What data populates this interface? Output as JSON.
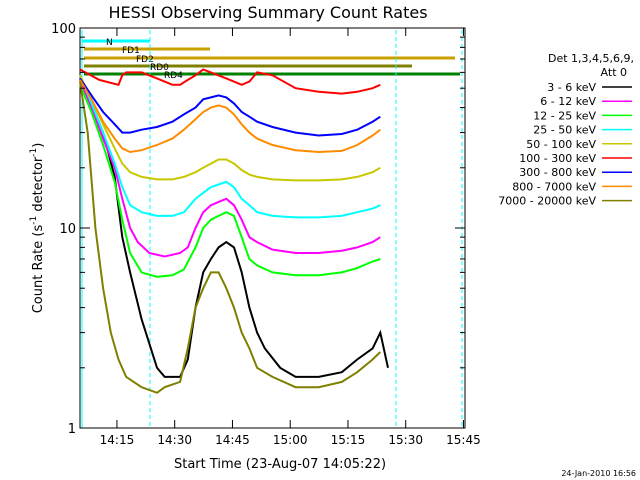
{
  "chart_data": {
    "type": "line",
    "title": "HESSI Observing Summary Count Rates",
    "xlabel": "Start Time (23-Aug-07 14:05:22)",
    "ylabel_main": "Count Rate (s",
    "ylabel_sup1": "-1",
    "ylabel_mid": " detector",
    "ylabel_sup2": "-1",
    "ylabel_end": ")",
    "yscale": "log",
    "ylim": [
      1,
      100
    ],
    "xlim_minutes": [
      0,
      100
    ],
    "xticks": [
      {
        "t": 9.6,
        "label": "14:15"
      },
      {
        "t": 24.6,
        "label": "14:30"
      },
      {
        "t": 39.6,
        "label": "14:45"
      },
      {
        "t": 54.6,
        "label": "15:00"
      },
      {
        "t": 69.6,
        "label": "15:15"
      },
      {
        "t": 84.6,
        "label": "15:30"
      },
      {
        "t": 99.6,
        "label": "15:45"
      }
    ],
    "yticks": [
      {
        "v": 1,
        "label": "1"
      },
      {
        "v": 10,
        "label": "10"
      },
      {
        "v": 100,
        "label": "100"
      }
    ],
    "legend_header": [
      "Det 1,3,4,5,6,9,",
      "Att 0"
    ],
    "series": [
      {
        "name": "3 - 6 keV",
        "color": "#000000",
        "points": [
          [
            0,
            55
          ],
          [
            3,
            42
          ],
          [
            6,
            30
          ],
          [
            9,
            18
          ],
          [
            11,
            9
          ],
          [
            13,
            6
          ],
          [
            16,
            3.5
          ],
          [
            20,
            2
          ],
          [
            22,
            1.8
          ],
          [
            26,
            1.8
          ],
          [
            28,
            2.2
          ],
          [
            30,
            4
          ],
          [
            32,
            6
          ],
          [
            34,
            7
          ],
          [
            36,
            8
          ],
          [
            38,
            8.5
          ],
          [
            40,
            8
          ],
          [
            42,
            6
          ],
          [
            44,
            4
          ],
          [
            46,
            3
          ],
          [
            48,
            2.5
          ],
          [
            52,
            2
          ],
          [
            56,
            1.8
          ],
          [
            62,
            1.8
          ],
          [
            68,
            1.9
          ],
          [
            72,
            2.2
          ],
          [
            76,
            2.5
          ],
          [
            78,
            3
          ],
          [
            80,
            2
          ]
        ]
      },
      {
        "name": "6 - 12 keV",
        "color": "#ff00ff",
        "points": [
          [
            0,
            55
          ],
          [
            3,
            40
          ],
          [
            6,
            28
          ],
          [
            9,
            20
          ],
          [
            11,
            14
          ],
          [
            13,
            10
          ],
          [
            15,
            8.5
          ],
          [
            18,
            7.5
          ],
          [
            22,
            7.2
          ],
          [
            26,
            7.5
          ],
          [
            28,
            8
          ],
          [
            30,
            10
          ],
          [
            32,
            12
          ],
          [
            34,
            13
          ],
          [
            36,
            13.5
          ],
          [
            38,
            14
          ],
          [
            40,
            13
          ],
          [
            42,
            11
          ],
          [
            44,
            9
          ],
          [
            46,
            8.5
          ],
          [
            50,
            7.8
          ],
          [
            56,
            7.5
          ],
          [
            62,
            7.5
          ],
          [
            68,
            7.7
          ],
          [
            72,
            8
          ],
          [
            76,
            8.5
          ],
          [
            78,
            9
          ]
        ]
      },
      {
        "name": "12 - 25 keV",
        "color": "#00ff00",
        "points": [
          [
            0,
            52
          ],
          [
            3,
            38
          ],
          [
            6,
            26
          ],
          [
            9,
            17
          ],
          [
            11,
            11
          ],
          [
            13,
            7.5
          ],
          [
            16,
            6
          ],
          [
            20,
            5.7
          ],
          [
            24,
            5.8
          ],
          [
            27,
            6.2
          ],
          [
            30,
            8
          ],
          [
            32,
            10
          ],
          [
            34,
            11
          ],
          [
            36,
            11.5
          ],
          [
            38,
            12
          ],
          [
            40,
            11.5
          ],
          [
            42,
            9
          ],
          [
            44,
            7
          ],
          [
            46,
            6.5
          ],
          [
            50,
            6
          ],
          [
            56,
            5.8
          ],
          [
            62,
            5.8
          ],
          [
            68,
            6
          ],
          [
            72,
            6.3
          ],
          [
            76,
            6.8
          ],
          [
            78,
            7
          ]
        ]
      },
      {
        "name": "25 - 50 keV",
        "color": "#00ffff",
        "points": [
          [
            0,
            58
          ],
          [
            3,
            42
          ],
          [
            6,
            30
          ],
          [
            9,
            21
          ],
          [
            11,
            16
          ],
          [
            13,
            13
          ],
          [
            16,
            12
          ],
          [
            20,
            11.5
          ],
          [
            24,
            11.5
          ],
          [
            27,
            12
          ],
          [
            30,
            14
          ],
          [
            32,
            15
          ],
          [
            34,
            16
          ],
          [
            36,
            16.5
          ],
          [
            38,
            17
          ],
          [
            40,
            16
          ],
          [
            42,
            14
          ],
          [
            44,
            13
          ],
          [
            46,
            12
          ],
          [
            50,
            11.5
          ],
          [
            56,
            11.3
          ],
          [
            62,
            11.3
          ],
          [
            68,
            11.5
          ],
          [
            72,
            12
          ],
          [
            76,
            12.5
          ],
          [
            78,
            13
          ]
        ]
      },
      {
        "name": "50 - 100 keV",
        "color": "#c8c800",
        "points": [
          [
            0,
            58
          ],
          [
            3,
            44
          ],
          [
            6,
            33
          ],
          [
            9,
            25
          ],
          [
            11,
            21
          ],
          [
            13,
            19
          ],
          [
            16,
            18
          ],
          [
            20,
            17.5
          ],
          [
            24,
            17.5
          ],
          [
            27,
            18
          ],
          [
            30,
            19
          ],
          [
            32,
            20
          ],
          [
            34,
            21
          ],
          [
            36,
            22
          ],
          [
            38,
            22
          ],
          [
            40,
            21
          ],
          [
            42,
            19.5
          ],
          [
            44,
            18.5
          ],
          [
            46,
            18
          ],
          [
            50,
            17.5
          ],
          [
            56,
            17.3
          ],
          [
            62,
            17.3
          ],
          [
            68,
            17.5
          ],
          [
            72,
            18
          ],
          [
            76,
            19
          ],
          [
            78,
            20
          ]
        ]
      },
      {
        "name": "100 - 300 keV",
        "color": "#ff0000",
        "points": [
          [
            0,
            62
          ],
          [
            5,
            55
          ],
          [
            10,
            52
          ],
          [
            11,
            58
          ],
          [
            12,
            60
          ],
          [
            16,
            60
          ],
          [
            20,
            56
          ],
          [
            24,
            52
          ],
          [
            26,
            52
          ],
          [
            28,
            55
          ],
          [
            30,
            58
          ],
          [
            32,
            62
          ],
          [
            34,
            60
          ],
          [
            38,
            56
          ],
          [
            42,
            52
          ],
          [
            44,
            54
          ],
          [
            46,
            60
          ],
          [
            50,
            58
          ],
          [
            56,
            50
          ],
          [
            62,
            48
          ],
          [
            68,
            47
          ],
          [
            72,
            48
          ],
          [
            76,
            50
          ],
          [
            78,
            52
          ]
        ]
      },
      {
        "name": "300 - 800 keV",
        "color": "#0000ff",
        "points": [
          [
            0,
            56
          ],
          [
            3,
            46
          ],
          [
            6,
            38
          ],
          [
            9,
            33
          ],
          [
            11,
            30
          ],
          [
            13,
            30
          ],
          [
            16,
            31
          ],
          [
            20,
            32
          ],
          [
            24,
            34
          ],
          [
            27,
            37
          ],
          [
            30,
            40
          ],
          [
            32,
            44
          ],
          [
            34,
            45
          ],
          [
            36,
            46
          ],
          [
            38,
            45
          ],
          [
            40,
            42
          ],
          [
            42,
            38
          ],
          [
            44,
            36
          ],
          [
            46,
            34
          ],
          [
            50,
            32
          ],
          [
            56,
            30
          ],
          [
            62,
            29
          ],
          [
            68,
            29.5
          ],
          [
            72,
            31
          ],
          [
            76,
            34
          ],
          [
            78,
            36
          ]
        ]
      },
      {
        "name": "800 - 7000 keV",
        "color": "#ff8c00",
        "points": [
          [
            0,
            55
          ],
          [
            3,
            44
          ],
          [
            6,
            34
          ],
          [
            9,
            28
          ],
          [
            11,
            25
          ],
          [
            13,
            24
          ],
          [
            16,
            24.5
          ],
          [
            20,
            26
          ],
          [
            24,
            28
          ],
          [
            27,
            31
          ],
          [
            30,
            35
          ],
          [
            32,
            38
          ],
          [
            34,
            40
          ],
          [
            36,
            41
          ],
          [
            38,
            40
          ],
          [
            40,
            37
          ],
          [
            42,
            33
          ],
          [
            44,
            30
          ],
          [
            46,
            28
          ],
          [
            50,
            26
          ],
          [
            56,
            24.5
          ],
          [
            62,
            24
          ],
          [
            68,
            24.3
          ],
          [
            72,
            26
          ],
          [
            76,
            29
          ],
          [
            78,
            31
          ]
        ]
      },
      {
        "name": "7000 - 20000 keV",
        "color": "#808000",
        "points": [
          [
            0,
            54
          ],
          [
            2,
            30
          ],
          [
            4,
            10
          ],
          [
            6,
            5
          ],
          [
            8,
            3
          ],
          [
            10,
            2.2
          ],
          [
            12,
            1.8
          ],
          [
            16,
            1.6
          ],
          [
            20,
            1.5
          ],
          [
            22,
            1.6
          ],
          [
            26,
            1.7
          ],
          [
            28,
            2.5
          ],
          [
            30,
            4
          ],
          [
            32,
            5
          ],
          [
            34,
            6
          ],
          [
            36,
            6
          ],
          [
            38,
            5
          ],
          [
            40,
            4
          ],
          [
            42,
            3
          ],
          [
            44,
            2.5
          ],
          [
            46,
            2
          ],
          [
            50,
            1.8
          ],
          [
            56,
            1.6
          ],
          [
            62,
            1.6
          ],
          [
            68,
            1.7
          ],
          [
            72,
            1.9
          ],
          [
            76,
            2.2
          ],
          [
            78,
            2.4
          ]
        ]
      }
    ],
    "flags": [
      {
        "name": "N",
        "color": "#00ffff"
      },
      {
        "name": "FD1",
        "color": "#c8a000"
      },
      {
        "name": "FD2",
        "color": "#c8a000"
      },
      {
        "name": "RD0",
        "color": "#808000"
      },
      {
        "name": "RD4",
        "color": "#008000"
      }
    ],
    "footer_date": "24-Jan-2010 16:56"
  }
}
